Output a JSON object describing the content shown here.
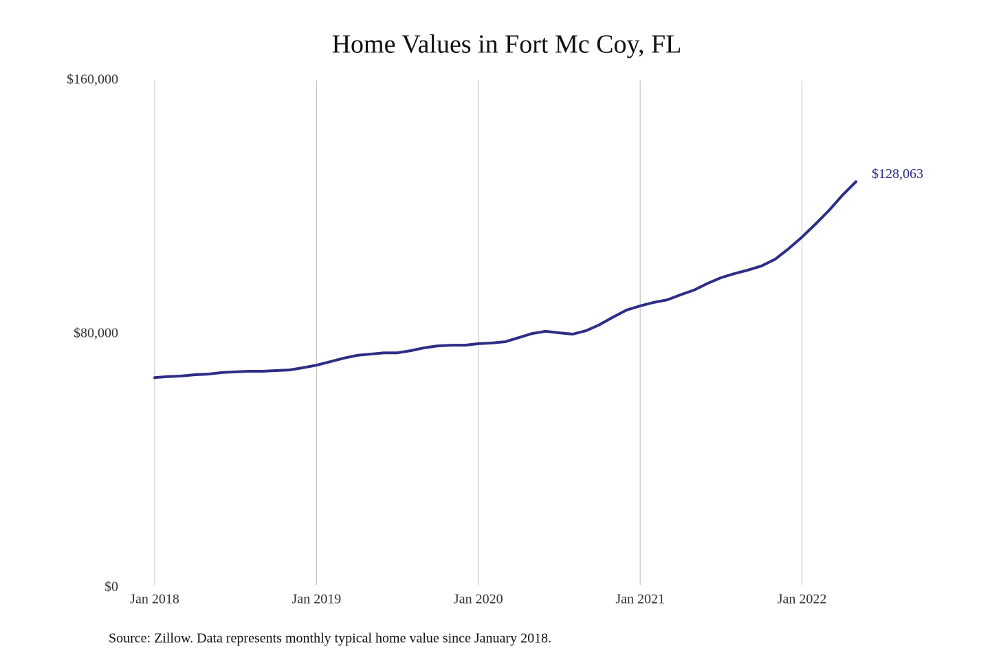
{
  "chart_data": {
    "type": "line",
    "title": "Home Values in Fort Mc Coy, FL",
    "source": "Source: Zillow. Data represents monthly typical home value since January 2018.",
    "x": [
      "2018-01",
      "2018-02",
      "2018-03",
      "2018-04",
      "2018-05",
      "2018-06",
      "2018-07",
      "2018-08",
      "2018-09",
      "2018-10",
      "2018-11",
      "2018-12",
      "2019-01",
      "2019-02",
      "2019-03",
      "2019-04",
      "2019-05",
      "2019-06",
      "2019-07",
      "2019-08",
      "2019-09",
      "2019-10",
      "2019-11",
      "2019-12",
      "2020-01",
      "2020-02",
      "2020-03",
      "2020-04",
      "2020-05",
      "2020-06",
      "2020-07",
      "2020-08",
      "2020-09",
      "2020-10",
      "2020-11",
      "2020-12",
      "2021-01",
      "2021-02",
      "2021-03",
      "2021-04",
      "2021-05",
      "2021-06",
      "2021-07",
      "2021-08",
      "2021-09",
      "2021-10",
      "2021-11",
      "2021-12",
      "2022-01",
      "2022-02",
      "2022-03",
      "2022-04",
      "2022-05"
    ],
    "series": [
      {
        "name": "Home value",
        "color": "#2e2e86",
        "values": [
          66300,
          66600,
          66800,
          67200,
          67400,
          67900,
          68100,
          68300,
          68300,
          68500,
          68700,
          69400,
          70200,
          71300,
          72400,
          73300,
          73700,
          74100,
          74100,
          74800,
          75700,
          76300,
          76500,
          76500,
          77000,
          77200,
          77600,
          78900,
          80200,
          80900,
          80400,
          80000,
          81100,
          83000,
          85400,
          87600,
          88900,
          90000,
          90800,
          92400,
          93900,
          96000,
          97800,
          99100,
          100200,
          101500,
          103600,
          106900,
          110600,
          114700,
          119000,
          123800,
          128063
        ],
        "value_labels": [
          null,
          null,
          null,
          null,
          null,
          null,
          null,
          null,
          null,
          null,
          null,
          null,
          null,
          null,
          null,
          null,
          null,
          null,
          null,
          null,
          null,
          null,
          null,
          null,
          null,
          null,
          null,
          null,
          null,
          null,
          null,
          null,
          null,
          null,
          null,
          null,
          null,
          null,
          null,
          null,
          null,
          null,
          null,
          null,
          null,
          null,
          null,
          null,
          null,
          null,
          null,
          null,
          "$128,063"
        ]
      }
    ],
    "xlim": [
      "2018-01",
      "2022-05"
    ],
    "xticks": [
      {
        "value": "2018-01",
        "label": "Jan 2018"
      },
      {
        "value": "2019-01",
        "label": "Jan 2019"
      },
      {
        "value": "2020-01",
        "label": "Jan 2020"
      },
      {
        "value": "2021-01",
        "label": "Jan 2021"
      },
      {
        "value": "2022-01",
        "label": "Jan 2022"
      }
    ],
    "ylim": [
      0,
      160000
    ],
    "yticks": [
      {
        "value": 0,
        "label": "$0"
      },
      {
        "value": 80000,
        "label": "$80,000"
      },
      {
        "value": 160000,
        "label": "$160,000"
      }
    ],
    "grid": "x"
  }
}
